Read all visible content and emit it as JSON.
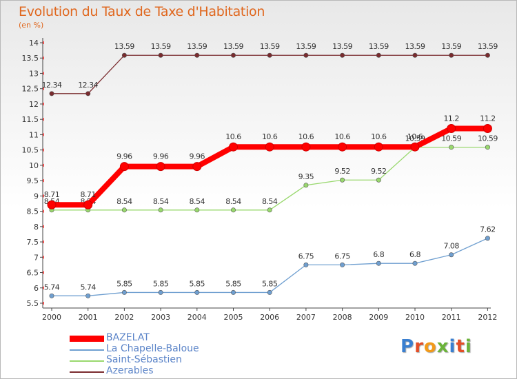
{
  "chart_data": {
    "type": "line",
    "title": "Evolution du Taux de Taxe d'Habitation",
    "subtitle": "(en %)",
    "x": [
      "2000",
      "2001",
      "2002",
      "2003",
      "2004",
      "2005",
      "2006",
      "2007",
      "2008",
      "2009",
      "2010",
      "2011",
      "2012"
    ],
    "ylim": [
      5.5,
      14
    ],
    "yticks": [
      "5.5",
      "6",
      "6.5",
      "7",
      "7.5",
      "8",
      "8.5",
      "9",
      "9.5",
      "10",
      "10.5",
      "11",
      "11.5",
      "12",
      "12.5",
      "13",
      "13.5",
      "14"
    ],
    "grid": false,
    "legend_position": "bottom-left",
    "series": [
      {
        "name": "Azerables",
        "color": "#7a2b2e",
        "values": [
          12.34,
          12.34,
          13.59,
          13.59,
          13.59,
          13.59,
          13.59,
          13.59,
          13.59,
          13.59,
          13.59,
          13.59,
          13.59
        ],
        "labels": [
          "12.34",
          "12.34",
          "13.59",
          "13.59",
          "13.59",
          "13.59",
          "13.59",
          "13.59",
          "13.59",
          "13.59",
          "13.59",
          "13.59",
          "13.59"
        ]
      },
      {
        "name": "Saint-Sébastien",
        "color": "#99d86e",
        "values": [
          8.54,
          8.54,
          8.54,
          8.54,
          8.54,
          8.54,
          8.54,
          9.35,
          9.52,
          9.52,
          10.59,
          10.59,
          10.59
        ],
        "labels": [
          "8.54",
          "8.54",
          "8.54",
          "8.54",
          "8.54",
          "8.54",
          "8.54",
          "9.35",
          "9.52",
          "9.52",
          "10.59",
          "10.59",
          "10.59"
        ]
      },
      {
        "name": "La Chapelle-Baloue",
        "color": "#6f9fd0",
        "values": [
          5.74,
          5.74,
          5.85,
          5.85,
          5.85,
          5.85,
          5.85,
          6.75,
          6.75,
          6.8,
          6.8,
          7.08,
          7.62
        ],
        "labels": [
          "5.74",
          "5.74",
          "5.85",
          "5.85",
          "5.85",
          "5.85",
          "5.85",
          "6.75",
          "6.75",
          "6.8",
          "6.8",
          "7.08",
          "7.62"
        ]
      },
      {
        "name": "BAZELAT",
        "color": "#ff0000",
        "values": [
          8.71,
          8.71,
          9.96,
          9.96,
          9.96,
          10.6,
          10.6,
          10.6,
          10.6,
          10.6,
          10.6,
          11.2,
          11.2
        ],
        "labels": [
          "8.71",
          "8.71",
          "9.96",
          "9.96",
          "9.96",
          "10.6",
          "10.6",
          "10.6",
          "10.6",
          "10.6",
          "10.6",
          "11.2",
          "11.2"
        ]
      }
    ]
  },
  "legend": [
    {
      "name": "BAZELAT",
      "color": "#ff0000",
      "style": "thick"
    },
    {
      "name": "La Chapelle-Baloue",
      "color": "#6f9fd0",
      "style": "thin"
    },
    {
      "name": "Saint-Sébastien",
      "color": "#99d86e",
      "style": "thin"
    },
    {
      "name": "Azerables",
      "color": "#7a2b2e",
      "style": "thin"
    }
  ],
  "logo": {
    "letters": [
      "P",
      "r",
      "o",
      "x",
      "i",
      "t",
      "i"
    ],
    "colors": [
      "#3a7fd0",
      "#e44d26",
      "#f29a1a",
      "#6bb33a",
      "#3a7fd0",
      "#e44d26",
      "#6bb33a"
    ]
  }
}
